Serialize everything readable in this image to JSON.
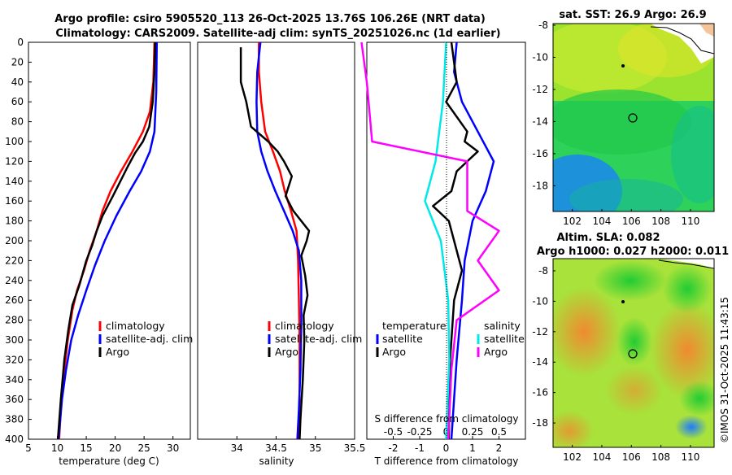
{
  "header": {
    "line1": "Argo profile: csiro 5905520_113 26-Oct-2025 13.76S 106.26E (NRT data)",
    "line2": "Climatology: CARS2009. Satellite-adj clim: synTS_20251026.nc (1d earlier)"
  },
  "colors": {
    "climatology": "#ff0000",
    "satellite": "#0000ff",
    "argo": "#000000",
    "t_sat": "#00e8e8",
    "s_diff": "#ff00ff"
  },
  "chart_data": [
    {
      "type": "line",
      "id": "temperature",
      "xlabel": "temperature (deg C)",
      "ylabel": "",
      "xlim": [
        5,
        33
      ],
      "ylim": [
        400,
        0
      ],
      "xticks": [
        "5",
        "10",
        "15",
        "20",
        "25",
        "30"
      ],
      "yticks": [
        "0",
        "20",
        "40",
        "60",
        "80",
        "100",
        "120",
        "140",
        "160",
        "180",
        "200",
        "220",
        "240",
        "260",
        "280",
        "300",
        "320",
        "340",
        "360",
        "380",
        "400"
      ],
      "legend": [
        "climatology",
        "satellite-adj. clim",
        "Argo"
      ],
      "series": [
        {
          "name": "climatology",
          "points": [
            [
              26.8,
              0
            ],
            [
              26.6,
              40
            ],
            [
              26,
              70
            ],
            [
              24.8,
              90
            ],
            [
              23,
              110
            ],
            [
              21,
              130
            ],
            [
              19.2,
              150
            ],
            [
              17.8,
              170
            ],
            [
              16.8,
              190
            ],
            [
              15.6,
              210
            ],
            [
              14.6,
              230
            ],
            [
              13.4,
              250
            ],
            [
              12.6,
              270
            ],
            [
              11.8,
              300
            ],
            [
              11.2,
              330
            ],
            [
              10.7,
              360
            ],
            [
              10.3,
              400
            ]
          ]
        },
        {
          "name": "satellite-adj. clim",
          "points": [
            [
              27.2,
              0
            ],
            [
              27.1,
              50
            ],
            [
              26.8,
              90
            ],
            [
              26.0,
              110
            ],
            [
              24.5,
              130
            ],
            [
              22.5,
              150
            ],
            [
              20.2,
              175
            ],
            [
              18.2,
              200
            ],
            [
              16.5,
              225
            ],
            [
              15.0,
              250
            ],
            [
              13.6,
              275
            ],
            [
              12.4,
              300
            ],
            [
              11.5,
              330
            ],
            [
              10.8,
              360
            ],
            [
              10.2,
              400
            ]
          ]
        },
        {
          "name": "Argo",
          "points": [
            [
              26.9,
              0
            ],
            [
              26.8,
              30
            ],
            [
              26.5,
              60
            ],
            [
              25.9,
              85
            ],
            [
              24.8,
              100
            ],
            [
              23.4,
              112
            ],
            [
              22.2,
              125
            ],
            [
              20.9,
              140
            ],
            [
              19.6,
              155
            ],
            [
              18.7,
              165
            ],
            [
              17.8,
              175
            ],
            [
              16.8,
              190
            ],
            [
              16.0,
              205
            ],
            [
              15.0,
              220
            ],
            [
              13.8,
              245
            ],
            [
              12.6,
              265
            ],
            [
              11.9,
              290
            ],
            [
              11.2,
              320
            ],
            [
              10.6,
              360
            ],
            [
              10.1,
              400
            ]
          ]
        }
      ]
    },
    {
      "type": "line",
      "id": "salinity",
      "xlabel": "salinity",
      "xlim": [
        33.5,
        35.5
      ],
      "ylim": [
        400,
        0
      ],
      "xticks": [
        "34",
        "34.5",
        "35",
        "35.5"
      ],
      "legend": [
        "climatology",
        "satellite-adj. clim",
        "Argo"
      ],
      "series": [
        {
          "name": "climatology",
          "points": [
            [
              34.28,
              0
            ],
            [
              34.28,
              30
            ],
            [
              34.31,
              60
            ],
            [
              34.36,
              90
            ],
            [
              34.46,
              110
            ],
            [
              34.55,
              130
            ],
            [
              34.61,
              150
            ],
            [
              34.69,
              170
            ],
            [
              34.76,
              190
            ],
            [
              34.78,
              220
            ],
            [
              34.79,
              260
            ],
            [
              34.8,
              300
            ],
            [
              34.8,
              350
            ],
            [
              34.79,
              400
            ]
          ]
        },
        {
          "name": "satellite-adj. clim",
          "points": [
            [
              34.3,
              0
            ],
            [
              34.26,
              30
            ],
            [
              34.25,
              60
            ],
            [
              34.26,
              90
            ],
            [
              34.31,
              110
            ],
            [
              34.39,
              130
            ],
            [
              34.49,
              150
            ],
            [
              34.6,
              170
            ],
            [
              34.71,
              190
            ],
            [
              34.79,
              210
            ],
            [
              34.82,
              240
            ],
            [
              34.82,
              280
            ],
            [
              34.81,
              330
            ],
            [
              34.79,
              370
            ],
            [
              34.77,
              400
            ]
          ]
        },
        {
          "name": "Argo",
          "points": [
            [
              34.05,
              5
            ],
            [
              34.05,
              40
            ],
            [
              34.12,
              60
            ],
            [
              34.18,
              85
            ],
            [
              34.4,
              100
            ],
            [
              34.52,
              110
            ],
            [
              34.6,
              120
            ],
            [
              34.7,
              135
            ],
            [
              34.62,
              155
            ],
            [
              34.72,
              170
            ],
            [
              34.92,
              190
            ],
            [
              34.89,
              200
            ],
            [
              34.82,
              215
            ],
            [
              34.87,
              235
            ],
            [
              34.9,
              255
            ],
            [
              34.85,
              275
            ],
            [
              34.86,
              300
            ],
            [
              34.84,
              340
            ],
            [
              34.81,
              380
            ],
            [
              34.8,
              400
            ]
          ]
        }
      ]
    },
    {
      "type": "line",
      "id": "difference",
      "xlabel": "T difference from climatology",
      "xlabel_top": "S difference from climatology",
      "xlim": [
        -3,
        3
      ],
      "ylim": [
        400,
        0
      ],
      "xticks": [
        "-2",
        "-1",
        "0",
        "1",
        "2"
      ],
      "xticks_top": [
        "-0.5",
        "-0.25",
        "0",
        "0.25",
        "0.5"
      ],
      "legend_left": {
        "title": "temperature",
        "items": [
          "satellite",
          "Argo"
        ]
      },
      "legend_right": {
        "title": "salinity",
        "items": [
          "satellite",
          "Argo"
        ]
      },
      "series": [
        {
          "name": "T satellite",
          "points": [
            [
              0.4,
              0
            ],
            [
              0.3,
              30
            ],
            [
              0.6,
              60
            ],
            [
              1.2,
              90
            ],
            [
              1.8,
              120
            ],
            [
              1.5,
              150
            ],
            [
              1.0,
              180
            ],
            [
              0.7,
              220
            ],
            [
              0.6,
              260
            ],
            [
              0.4,
              320
            ],
            [
              0.2,
              400
            ]
          ]
        },
        {
          "name": "T Argo",
          "points": [
            [
              0.2,
              0
            ],
            [
              0.4,
              40
            ],
            [
              0,
              60
            ],
            [
              0.8,
              90
            ],
            [
              0.7,
              100
            ],
            [
              1.2,
              110
            ],
            [
              0.4,
              130
            ],
            [
              0.2,
              150
            ],
            [
              -0.5,
              165
            ],
            [
              0.1,
              180
            ],
            [
              0.3,
              200
            ],
            [
              0.6,
              230
            ],
            [
              0.3,
              260
            ],
            [
              0.15,
              320
            ],
            [
              0.1,
              400
            ]
          ]
        },
        {
          "name": "S satellite",
          "points": [
            [
              0,
              0
            ],
            [
              -0.03,
              60
            ],
            [
              -0.1,
              120
            ],
            [
              -0.2,
              160
            ],
            [
              -0.05,
              200
            ],
            [
              0.02,
              260
            ],
            [
              0.03,
              320
            ],
            [
              0,
              400
            ]
          ]
        },
        {
          "name": "S Argo",
          "points": [
            [
              -0.8,
              0
            ],
            [
              -0.75,
              40
            ],
            [
              -0.7,
              100
            ],
            [
              0.2,
              120
            ],
            [
              0.2,
              170
            ],
            [
              0.5,
              190
            ],
            [
              0.3,
              220
            ],
            [
              0.5,
              250
            ],
            [
              0.1,
              280
            ],
            [
              0.05,
              330
            ],
            [
              0.02,
              400
            ]
          ]
        }
      ]
    }
  ],
  "maps": {
    "sst": {
      "title": "sat. SST: 26.9 Argo: 26.9",
      "xticks": [
        "102",
        "104",
        "106",
        "108",
        "110"
      ],
      "yticks": [
        "-8",
        "-10",
        "-12",
        "-14",
        "-16",
        "-18"
      ]
    },
    "sla": {
      "title1": "Altim. SLA: 0.082",
      "title2": "Argo h1000: 0.027 h2000: 0.011",
      "xticks": [
        "102",
        "104",
        "106",
        "108",
        "110"
      ],
      "yticks": [
        "-8",
        "-10",
        "-12",
        "-14",
        "-16",
        "-18"
      ]
    }
  },
  "footer": {
    "credit": "©IMOS 31-Oct-2025 11:43:15"
  }
}
